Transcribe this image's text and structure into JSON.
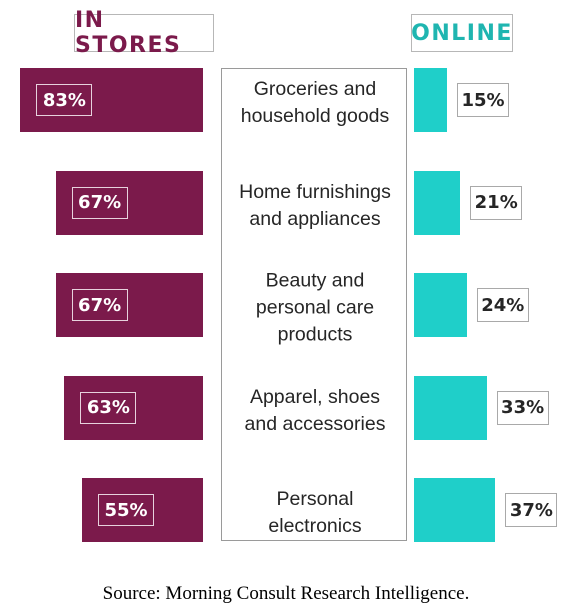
{
  "chart_data": {
    "type": "bar",
    "orientation": "horizontal",
    "layout": "diverging, categories in center column",
    "categories": [
      [
        "Groceries and",
        "household goods"
      ],
      [
        "Home furnishings",
        "and appliances"
      ],
      [
        "Beauty and",
        "personal care",
        "products"
      ],
      [
        "Apparel, shoes",
        "and accessories"
      ],
      [
        "Personal",
        "electronics"
      ]
    ],
    "series": [
      {
        "name": "IN STORES",
        "color": "#7b1a4b",
        "values": [
          83,
          67,
          67,
          63,
          55
        ],
        "labels": [
          "83%",
          "67%",
          "67%",
          "63%",
          "55%"
        ]
      },
      {
        "name": "ONLINE",
        "color": "#1fcfc9",
        "values": [
          15,
          21,
          24,
          33,
          37
        ],
        "labels": [
          "15%",
          "21%",
          "24%",
          "33%",
          "37%"
        ]
      }
    ],
    "unit": "%"
  },
  "source": "Source: Morning Consult Research Intelligence."
}
